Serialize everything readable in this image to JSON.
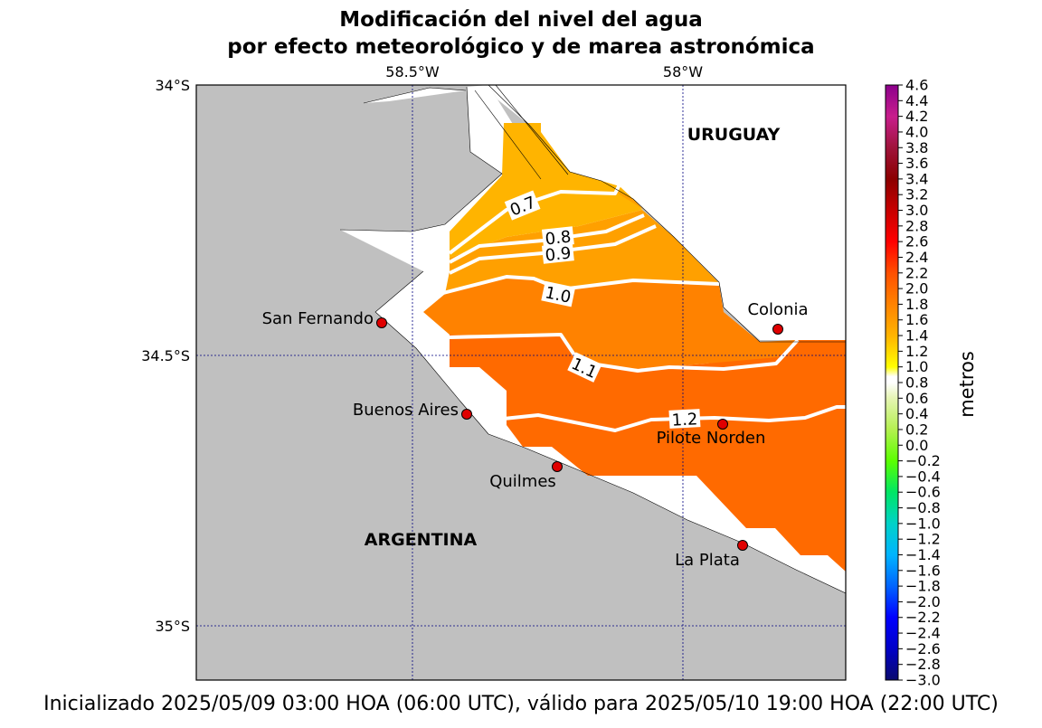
{
  "title": {
    "line1": "Modificación del nivel del agua",
    "line2": "por efecto meteorológico y de marea astronómica"
  },
  "footer": "Inicializado 2025/05/09 03:00 HOA (06:00 UTC), válido para 2025/05/10 19:00 HOA (22:00 UTC)",
  "map": {
    "lon_labels": [
      "58.5°W",
      "58°W"
    ],
    "lat_labels": [
      "34°S",
      "34.5°S",
      "35°S"
    ],
    "countries": [
      "URUGUAY",
      "ARGENTINA"
    ],
    "cities": [
      {
        "name": "San Fernando"
      },
      {
        "name": "Buenos Aires"
      },
      {
        "name": "Quilmes"
      },
      {
        "name": "Colonia"
      },
      {
        "name": "Pilote Norden"
      },
      {
        "name": "La Plata"
      }
    ],
    "contour_labels": [
      "0.7",
      "0.8",
      "0.9",
      "1.0",
      "1.1",
      "1.2"
    ],
    "colors": {
      "land": "#c0c0c0",
      "water": "#ffffff",
      "level_0_6_0_8": "#ffb400",
      "level_0_8_1_0": "#ffa000",
      "level_1_0_1_2": "#ff8200",
      "level_1_2_1_4": "#ff6a00",
      "contour": "#ffffff",
      "grid": "#00007f",
      "city_marker": "#e00000"
    }
  },
  "colorbar": {
    "label": "metros",
    "ticks": [
      "4.6",
      "4.4",
      "4.2",
      "4.0",
      "3.8",
      "3.6",
      "3.4",
      "3.2",
      "3.0",
      "2.8",
      "2.6",
      "2.4",
      "2.2",
      "2.0",
      "1.8",
      "1.6",
      "1.4",
      "1.2",
      "1.0",
      "0.8",
      "0.6",
      "0.4",
      "0.2",
      "0.0",
      "−0.2",
      "−0.4",
      "−0.6",
      "−0.8",
      "−1.0",
      "−1.2",
      "−1.4",
      "−1.6",
      "−1.8",
      "−2.0",
      "−2.2",
      "−2.4",
      "−2.6",
      "−2.8",
      "−3.0"
    ]
  }
}
